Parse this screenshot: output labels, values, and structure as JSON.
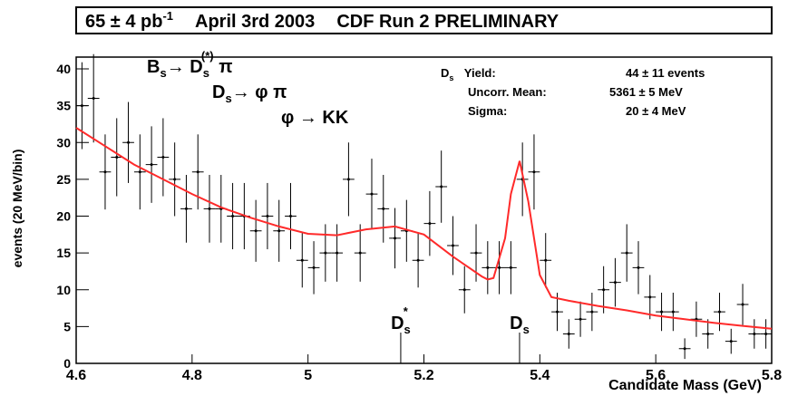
{
  "chart_data": {
    "type": "errorbar-histogram",
    "title": {
      "lumi": "65 ± 4 pb",
      "lumi_sup": "-1",
      "date": "April 3rd 2003",
      "experiment": "CDF Run 2 PRELIMINARY"
    },
    "x_label": "Candidate Mass (GeV)",
    "y_label": "events (20 MeV/bin)",
    "xlim": [
      4.6,
      5.8
    ],
    "xticks": [
      4.6,
      4.8,
      5,
      5.2,
      5.4,
      5.6,
      5.8
    ],
    "ylim": [
      0,
      41.6
    ],
    "yticks": [
      0,
      5,
      10,
      15,
      20,
      25,
      30,
      35,
      40
    ],
    "decay": [
      [
        "B",
        "s",
        "",
        "→ D",
        "s",
        "(*)",
        " π"
      ],
      [
        "D",
        "s",
        "",
        "→ φ π",
        "",
        ""
      ],
      [
        "φ → KK",
        "",
        "",
        "",
        "",
        ""
      ]
    ],
    "stats": [
      [
        "D",
        "s",
        " Yield:",
        "44 ± 11 events"
      ],
      [
        "",
        "",
        "Uncorr. Mean:",
        "5361 ± 5 MeV"
      ],
      [
        "",
        "",
        "Sigma:",
        "20 ± 4 MeV"
      ]
    ],
    "markers": [
      {
        "label": "D",
        "sub": "s",
        "sup": "*",
        "x": 5.16
      },
      {
        "label": "D",
        "sub": "s",
        "sup": "",
        "x": 5.365
      }
    ],
    "series": [
      {
        "name": "data",
        "color": "#000000",
        "x": [
          4.61,
          4.63,
          4.65,
          4.67,
          4.69,
          4.71,
          4.73,
          4.75,
          4.77,
          4.79,
          4.81,
          4.83,
          4.85,
          4.87,
          4.89,
          4.91,
          4.93,
          4.95,
          4.97,
          4.99,
          5.01,
          5.03,
          5.05,
          5.07,
          5.09,
          5.11,
          5.13,
          5.15,
          5.17,
          5.19,
          5.21,
          5.23,
          5.25,
          5.27,
          5.29,
          5.31,
          5.33,
          5.35,
          5.37,
          5.39,
          5.41,
          5.43,
          5.45,
          5.47,
          5.49,
          5.51,
          5.53,
          5.55,
          5.57,
          5.59,
          5.61,
          5.63,
          5.65,
          5.67,
          5.69,
          5.71,
          5.73,
          5.75,
          5.77,
          5.79
        ],
        "values": [
          35,
          36,
          26,
          28,
          30,
          26,
          27,
          28,
          25,
          21,
          26,
          21,
          21,
          20,
          20,
          18,
          20,
          18,
          20,
          14,
          13,
          15,
          15,
          25,
          15,
          23,
          21,
          17,
          18,
          14,
          19,
          24,
          16,
          10,
          15,
          13,
          13,
          13,
          25,
          26,
          14,
          7,
          4,
          6,
          7,
          10,
          11,
          15,
          13,
          9,
          7,
          7,
          2,
          6,
          4,
          7,
          3,
          8,
          4,
          4
        ],
        "errors": [
          5.9,
          6,
          5.1,
          5.3,
          5.5,
          5.1,
          5.2,
          5.3,
          5,
          4.6,
          5.1,
          4.6,
          4.6,
          4.5,
          4.5,
          4.2,
          4.5,
          4.2,
          4.5,
          3.7,
          3.6,
          3.9,
          3.9,
          5,
          3.9,
          4.8,
          4.6,
          4.1,
          4.2,
          3.7,
          4.4,
          4.9,
          4,
          3.2,
          3.9,
          3.6,
          3.6,
          3.6,
          5,
          5.1,
          3.7,
          2.6,
          2,
          2.4,
          2.6,
          3.2,
          3.3,
          3.9,
          3.6,
          3,
          2.6,
          2.6,
          1.4,
          2.4,
          2,
          2.6,
          1.7,
          2.8,
          2,
          2
        ]
      },
      {
        "name": "fit",
        "color": "#ff2a2a",
        "x": [
          4.6,
          4.65,
          4.7,
          4.75,
          4.8,
          4.85,
          4.9,
          4.95,
          5,
          5.05,
          5.1,
          5.15,
          5.2,
          5.25,
          5.3,
          5.31,
          5.32,
          5.34,
          5.35,
          5.365,
          5.38,
          5.4,
          5.42,
          5.45,
          5.5,
          5.55,
          5.6,
          5.65,
          5.7,
          5.75,
          5.8
        ],
        "values": [
          32,
          29.5,
          27,
          25,
          23,
          21.2,
          19.8,
          18.6,
          17.6,
          17.4,
          18.2,
          18.6,
          17.5,
          14.5,
          11.8,
          11.4,
          11.6,
          17,
          23,
          27.5,
          22,
          12,
          9,
          8.5,
          7.8,
          7.2,
          6.5,
          6,
          5.5,
          5.1,
          4.7
        ]
      }
    ]
  }
}
